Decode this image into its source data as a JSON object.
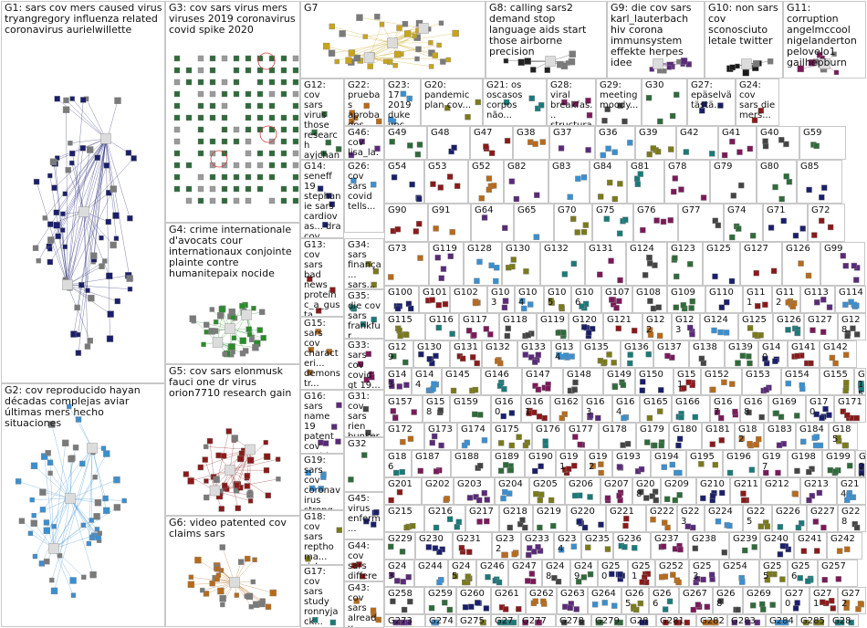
{
  "title": "",
  "groups": [
    {
      "id": "G1",
      "label": "G1: sars cov mers caused virus tryangregory influenza related coronavirus aurielwillette",
      "color": "#1a1f6b"
    },
    {
      "id": "G2",
      "label": "G2: cov reproducido hayan décadas complejas aviar últimas mers hecho situaciones",
      "color": "#3a8fd0"
    },
    {
      "id": "G3",
      "label": "G3: cov sars virus mers viruses 2019 coronavirus covid spike 2020",
      "color": "#2f6b3a"
    },
    {
      "id": "G4",
      "label": "G4: crime internationale d'avocats cour internationaux conjointe plainte contre humanitepaix nocide",
      "color": "#2a8c2a"
    },
    {
      "id": "G5",
      "label": "G5: cov sars elonmusk fauci one dr virus orion7710 research gain",
      "color": "#8a1a1a"
    },
    {
      "id": "G6",
      "label": "G6: video patented cov claims sars",
      "color": "#b86a1a"
    },
    {
      "id": "G7",
      "label": "G7",
      "color": "#c8a41a"
    },
    {
      "id": "G8",
      "label": "G8: calling sars2 demand stop language aids start those airborne precision",
      "color": "#222222"
    },
    {
      "id": "G9",
      "label": "G9: die cov sars karl_lauterbach hiv corona immunsystem effekte herpes idee",
      "color": "#5a2a7a"
    },
    {
      "id": "G10",
      "label": "G10: non sars cov sconosciuto letale twitter",
      "color": "#1a1a1a"
    },
    {
      "id": "G11",
      "label": "G11: corruption angelmccool nigelanderton pelovelo1 gailhepburn",
      "color": "#7a1a5a"
    }
  ],
  "small_groups": [
    {
      "id": "G12",
      "label": "G12: cov sars virus those research ayjchan scienceco..."
    },
    {
      "id": "G22",
      "label": "G22: pruebas aprobados"
    },
    {
      "id": "G23",
      "label": "G23: 17 2019 duke unc..."
    },
    {
      "id": "G20",
      "label": "G20: pandemic plan cov..."
    },
    {
      "id": "G21",
      "label": "G21: os oscasos corpos não..."
    },
    {
      "id": "G28",
      "label": "G28: viral breakfas... structura..."
    },
    {
      "id": "G29",
      "label": "G29: meeting moody..."
    },
    {
      "id": "G30",
      "label": "G30"
    },
    {
      "id": "G27",
      "label": "G27: epäselvä tästä..."
    },
    {
      "id": "G24",
      "label": "G24: cov sars die mers..."
    },
    {
      "id": "G14",
      "label": "G14: seneff 19 stephanie sars cardiovas... dra cov..."
    },
    {
      "id": "G26",
      "label": "G26: cov sars covid tells..."
    },
    {
      "id": "G13",
      "label": "G13: cov sars bad news protein c_a_gusta... mers..."
    },
    {
      "id": "G15",
      "label": "G15: sars cov characteri... demonstr... health..."
    },
    {
      "id": "G16",
      "label": "G16: sars name 19 patent cov covid test..."
    },
    {
      "id": "G19",
      "label": "G19: sars cov coronavirus strong..."
    },
    {
      "id": "G18",
      "label": "G18: cov sars repthoma... risk..."
    },
    {
      "id": "G17",
      "label": "G17: cov sars study ronnyjack... vitro..."
    },
    {
      "id": "G46",
      "label": "G46: cov lisa_la... sars..."
    },
    {
      "id": "G34",
      "label": "G34: sars finança... sars..."
    },
    {
      "id": "G35",
      "label": "G35: die cov sars frankfur..."
    },
    {
      "id": "G33",
      "label": "G33: sars cov covid gt 19..."
    },
    {
      "id": "G31",
      "label": "G31: cov sars rien bunker..."
    },
    {
      "id": "G32",
      "label": "G32"
    },
    {
      "id": "G45",
      "label": "G45: virus enferm..."
    },
    {
      "id": "G44",
      "label": "G44: cov sars differen..."
    },
    {
      "id": "G43",
      "label": "G43: cov sars already..."
    }
  ]
}
